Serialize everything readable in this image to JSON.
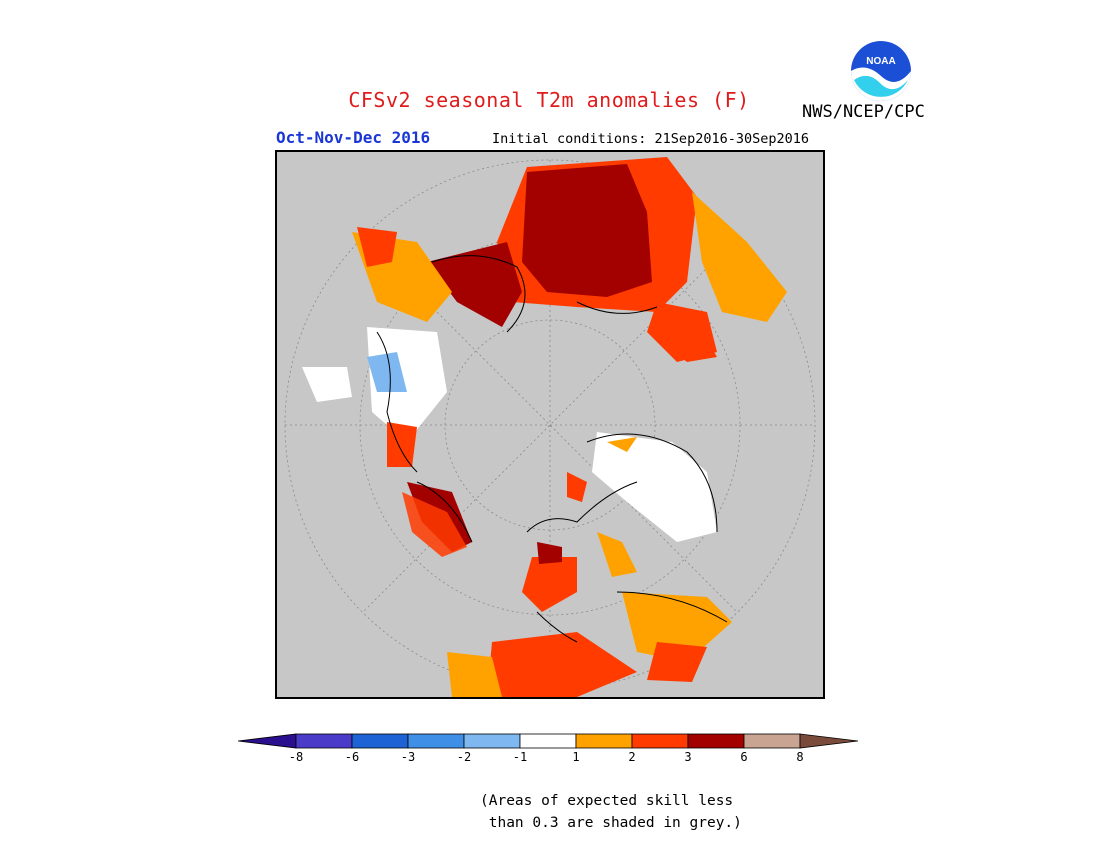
{
  "title": "CFSv2 seasonal T2m anomalies (F)",
  "period": "Oct-Nov-Dec 2016",
  "initial_conditions": "Initial conditions: 21Sep2016-30Sep2016",
  "agency": "NWS/NCEP/CPC",
  "logo_text": "NOAA",
  "colorbar": {
    "colors": [
      "#2a0f8f",
      "#4a3cc8",
      "#1d63d6",
      "#3f8fe6",
      "#7fb8f0",
      "#ffffff",
      "#ffa200",
      "#ff3b00",
      "#a30000",
      "#c9a492",
      "#7a4a3a"
    ],
    "ticks": [
      "-8",
      "-6",
      "-3",
      "-2",
      "-1",
      "1",
      "2",
      "3",
      "6",
      "8"
    ]
  },
  "note": {
    "line1": "(Areas of expected skill less",
    "line2": " than 0.3 are shaded in grey.)"
  }
}
